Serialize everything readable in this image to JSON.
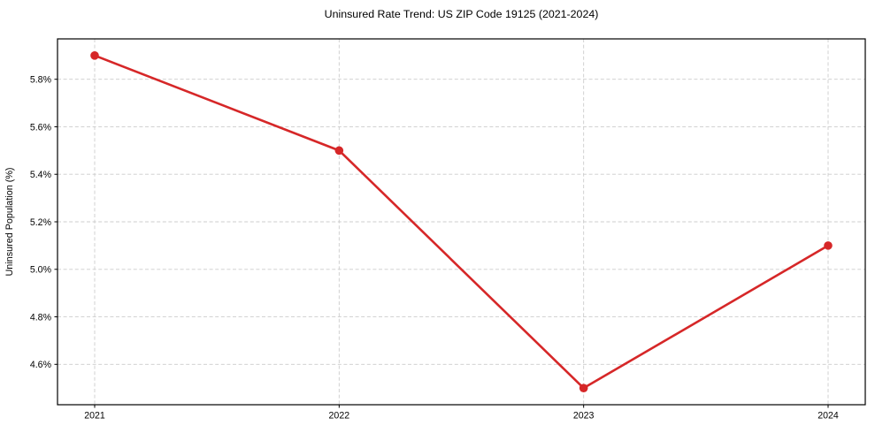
{
  "chart_data": {
    "type": "line",
    "title": "Uninsured Rate Trend: US ZIP Code 19125 (2021-2024)",
    "xlabel": "",
    "ylabel": "Uninsured Population (%)",
    "x": [
      2021,
      2022,
      2023,
      2024
    ],
    "xtick_labels": [
      "2021",
      "2022",
      "2023",
      "2024"
    ],
    "values": [
      5.9,
      5.5,
      4.5,
      5.1
    ],
    "yticks": [
      4.6,
      4.8,
      5.0,
      5.2,
      5.4,
      5.6,
      5.8
    ],
    "ytick_labels": [
      "4.6%",
      "4.8%",
      "5.0%",
      "5.2%",
      "5.4%",
      "5.6%",
      "5.8%"
    ],
    "ylim": [
      4.43,
      5.97
    ],
    "grid": true,
    "grid_style": "dashed",
    "legend": false,
    "line_color": "#d62728",
    "marker_color": "#d62728",
    "grid_color": "#cccccc",
    "spine_color": "#000000",
    "background_color": "#ffffff"
  }
}
